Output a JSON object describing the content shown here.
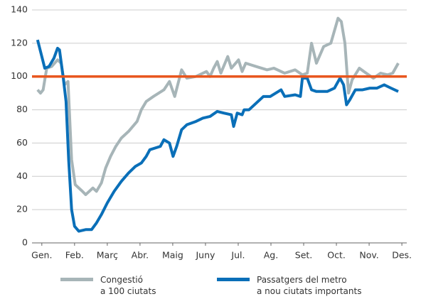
{
  "chart_data": {
    "type": "line",
    "xlim": [
      -0.3,
      11.15
    ],
    "xticks": [
      {
        "value": 0,
        "label": "Gen."
      },
      {
        "value": 1,
        "label": "Feb."
      },
      {
        "value": 2,
        "label": "Març"
      },
      {
        "value": 3,
        "label": "Abr."
      },
      {
        "value": 4,
        "label": "Maig"
      },
      {
        "value": 5,
        "label": "Juny"
      },
      {
        "value": 6,
        "label": "Jul."
      },
      {
        "value": 7,
        "label": "Ag."
      },
      {
        "value": 8,
        "label": "Set."
      },
      {
        "value": 9,
        "label": "Oct."
      },
      {
        "value": 10,
        "label": "Nov."
      },
      {
        "value": 11,
        "label": "Des."
      }
    ],
    "ylim": [
      0,
      140
    ],
    "yticks": [
      0,
      20,
      40,
      60,
      80,
      100,
      120,
      140
    ],
    "grid": true,
    "reference_line": {
      "value": 100,
      "color": "#e8561e"
    },
    "series": [
      {
        "name": "Congestió\na 100 ciutats",
        "color": "#a7b5b8",
        "x": [
          -0.13,
          -0.04,
          0.04,
          0.15,
          0.3,
          0.48,
          0.59,
          0.69,
          0.8,
          0.91,
          1.02,
          1.24,
          1.34,
          1.56,
          1.67,
          1.82,
          1.95,
          2.1,
          2.26,
          2.43,
          2.65,
          2.91,
          3.04,
          3.19,
          3.41,
          3.73,
          3.9,
          4.06,
          4.27,
          4.43,
          4.71,
          5.03,
          5.14,
          5.25,
          5.36,
          5.47,
          5.68,
          5.79,
          6.01,
          6.12,
          6.23,
          6.55,
          6.88,
          7.09,
          7.42,
          7.74,
          7.96,
          8.11,
          8.24,
          8.39,
          8.61,
          8.83,
          9.05,
          9.15,
          9.26,
          9.37,
          9.48,
          9.7,
          9.91,
          10.13,
          10.35,
          10.56,
          10.72,
          10.89
        ],
        "values": [
          92,
          90,
          92,
          105,
          106,
          110,
          108,
          95,
          97,
          50,
          35,
          31,
          29,
          33,
          31,
          36,
          45,
          52,
          58,
          63,
          67,
          73,
          80,
          85,
          88,
          92,
          97,
          88,
          104,
          99,
          100,
          103,
          100,
          105,
          109,
          102,
          112,
          105,
          110,
          103,
          108,
          106,
          104,
          105,
          102,
          104,
          101,
          102,
          120,
          108,
          118,
          120,
          135,
          133,
          120,
          90,
          98,
          105,
          102,
          99,
          102,
          101,
          102,
          108
        ]
      },
      {
        "name": "Passatgers del metro\na nou ciutats importants",
        "color": "#0a6fb8",
        "x": [
          -0.13,
          0,
          0.09,
          0.22,
          0.37,
          0.48,
          0.54,
          0.65,
          0.74,
          0.82,
          0.91,
          1.0,
          1.13,
          1.34,
          1.52,
          1.67,
          1.82,
          2.0,
          2.21,
          2.43,
          2.65,
          2.86,
          3.04,
          3.19,
          3.3,
          3.62,
          3.73,
          3.9,
          4.01,
          4.12,
          4.27,
          4.43,
          4.71,
          4.92,
          5.14,
          5.36,
          5.57,
          5.79,
          5.86,
          5.97,
          6.12,
          6.18,
          6.33,
          6.55,
          6.77,
          6.98,
          7.31,
          7.42,
          7.74,
          7.9,
          7.96,
          8.11,
          8.24,
          8.39,
          8.72,
          8.94,
          9.11,
          9.22,
          9.31,
          9.41,
          9.58,
          9.8,
          10.02,
          10.24,
          10.46,
          10.67,
          10.89
        ],
        "values": [
          122,
          112,
          105,
          106,
          111,
          117,
          116,
          100,
          85,
          50,
          20,
          10,
          7,
          8,
          8,
          12,
          17,
          24,
          31,
          37,
          42,
          46,
          48,
          52,
          56,
          58,
          62,
          60,
          52,
          58,
          68,
          71,
          73,
          75,
          76,
          79,
          78,
          77,
          70,
          78,
          77,
          80,
          80,
          84,
          88,
          88,
          92,
          88,
          89,
          88,
          99,
          99,
          92,
          91,
          91,
          93,
          99,
          95,
          83,
          86,
          92,
          92,
          93,
          93,
          95,
          93,
          91
        ]
      }
    ]
  }
}
